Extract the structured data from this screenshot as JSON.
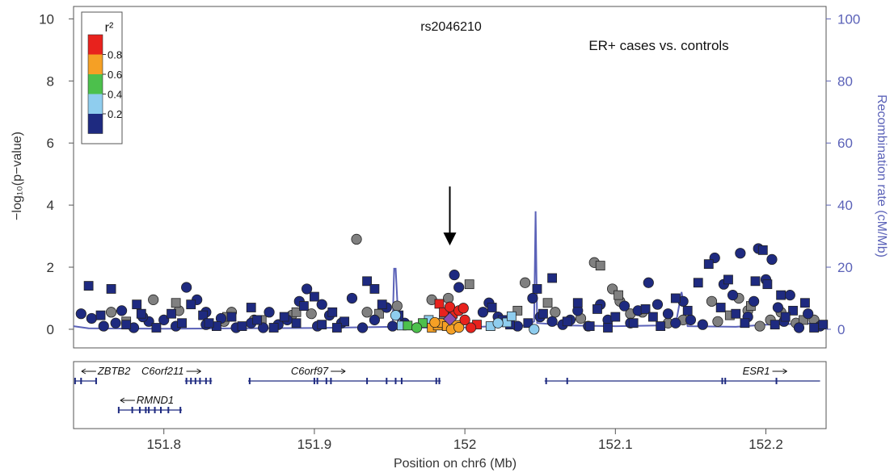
{
  "chart_data": {
    "type": "scatter",
    "title": "rs2046210",
    "subtitle": "ER+ cases vs. controls",
    "xlabel": "Position on chr6 (Mb)",
    "ylabel_left": "−log₁₀(p−value)",
    "ylabel_right": "Recombination rate (cM/Mb)",
    "xlim": [
      151.74,
      152.24
    ],
    "ylim_left": [
      -0.6,
      10.4
    ],
    "ylim_right": [
      -6,
      104
    ],
    "x_ticks": [
      151.8,
      151.9,
      152.0,
      152.1,
      152.2
    ],
    "x_tick_labels": [
      "151.8",
      "151.9",
      "152",
      "152.1",
      "152.2"
    ],
    "y_ticks_left": [
      0,
      2,
      4,
      6,
      8,
      10
    ],
    "y_tick_labels_left": [
      "0",
      "2",
      "4",
      "6",
      "8",
      "10"
    ],
    "y_ticks_right": [
      0,
      20,
      40,
      60,
      80,
      100
    ],
    "y_tick_labels_right": [
      "0",
      "20",
      "40",
      "60",
      "80",
      "100"
    ],
    "legend": {
      "title": "r²",
      "placement": "top-left",
      "bins": [
        {
          "color": "#e8221d"
        },
        {
          "color": "#f5a025"
        },
        {
          "color": "#4cc04c"
        },
        {
          "color": "#8fcdee"
        },
        {
          "color": "#1e2a80"
        }
      ],
      "labels": [
        "0.8",
        "0.6",
        "0.4",
        "0.2"
      ]
    },
    "lead_snp": {
      "x": 151.99,
      "y": 0.33,
      "color": "#8a4fb3"
    },
    "arrow_annotation": {
      "x": 151.99,
      "from_y": 4.6,
      "to_y": 2.7
    },
    "series": [
      {
        "color": "#e8221d",
        "shape": "square",
        "points": [
          [
            151.983,
            0.82
          ],
          [
            151.986,
            0.55
          ],
          [
            151.992,
            0.5
          ],
          [
            152.008,
            0.15
          ]
        ]
      },
      {
        "color": "#e8221d",
        "shape": "circle",
        "points": [
          [
            151.99,
            0.72
          ],
          [
            151.996,
            0.6
          ],
          [
            151.999,
            0.68
          ],
          [
            152.0,
            0.3
          ],
          [
            152.004,
            0.05
          ]
        ]
      },
      {
        "color": "#f5a025",
        "shape": "square",
        "points": [
          [
            151.978,
            0.05
          ],
          [
            151.982,
            0.12
          ],
          [
            151.985,
            0.2
          ],
          [
            151.988,
            0.1
          ],
          [
            151.994,
            0.14
          ]
        ]
      },
      {
        "color": "#f5a025",
        "shape": "circle",
        "points": [
          [
            151.98,
            0.22
          ],
          [
            151.991,
            0.0
          ],
          [
            151.996,
            0.06
          ]
        ]
      },
      {
        "color": "#4cc04c",
        "shape": "square",
        "points": [
          [
            151.962,
            0.12
          ],
          [
            151.972,
            0.2
          ]
        ]
      },
      {
        "color": "#4cc04c",
        "shape": "circle",
        "points": [
          [
            151.968,
            0.05
          ]
        ]
      },
      {
        "color": "#8fcdee",
        "shape": "square",
        "points": [
          [
            151.958,
            0.12
          ],
          [
            151.976,
            0.3
          ],
          [
            152.017,
            0.1
          ],
          [
            152.028,
            0.22
          ],
          [
            152.031,
            0.42
          ]
        ]
      },
      {
        "color": "#8fcdee",
        "shape": "circle",
        "points": [
          [
            151.954,
            0.45
          ],
          [
            152.022,
            0.2
          ],
          [
            152.046,
            0.0
          ]
        ]
      },
      {
        "color": "#808080",
        "shape": "circle",
        "points": [
          [
            151.765,
            0.55
          ],
          [
            151.793,
            0.95
          ],
          [
            151.845,
            0.55
          ],
          [
            151.86,
            0.3
          ],
          [
            151.885,
            0.45
          ],
          [
            151.898,
            0.5
          ],
          [
            151.928,
            2.9
          ],
          [
            151.935,
            0.55
          ],
          [
            151.978,
            0.95
          ],
          [
            151.989,
            1.0
          ],
          [
            152.04,
            1.5
          ],
          [
            152.086,
            2.15
          ],
          [
            152.098,
            1.3
          ],
          [
            152.103,
            0.9
          ],
          [
            152.118,
            0.55
          ],
          [
            152.135,
            0.2
          ],
          [
            152.164,
            0.9
          ],
          [
            152.168,
            0.25
          ],
          [
            152.182,
            1.0
          ],
          [
            152.188,
            0.6
          ],
          [
            152.196,
            0.1
          ],
          [
            152.203,
            0.3
          ],
          [
            152.22,
            0.2
          ],
          [
            152.232,
            0.3
          ],
          [
            151.81,
            0.6
          ],
          [
            151.84,
            0.25
          ],
          [
            151.955,
            0.75
          ],
          [
            152.06,
            0.55
          ],
          [
            152.077,
            0.35
          ],
          [
            152.11,
            0.5
          ],
          [
            152.145,
            0.3
          ],
          [
            152.21,
            0.55
          ]
        ]
      },
      {
        "color": "#808080",
        "shape": "square",
        "points": [
          [
            151.808,
            0.85
          ],
          [
            151.842,
            0.4
          ],
          [
            151.865,
            0.3
          ],
          [
            151.888,
            0.55
          ],
          [
            151.943,
            0.5
          ],
          [
            151.986,
            0.3
          ],
          [
            152.003,
            1.45
          ],
          [
            152.055,
            0.85
          ],
          [
            152.09,
            2.05
          ],
          [
            152.102,
            1.1
          ],
          [
            152.176,
            0.45
          ],
          [
            152.19,
            0.75
          ],
          [
            152.225,
            0.3
          ],
          [
            151.775,
            0.25
          ],
          [
            152.035,
            0.6
          ]
        ]
      },
      {
        "color": "#1e2a80",
        "shape": "circle",
        "points": [
          [
            151.752,
            0.35
          ],
          [
            151.76,
            0.1
          ],
          [
            151.772,
            0.6
          ],
          [
            151.78,
            0.05
          ],
          [
            151.79,
            0.25
          ],
          [
            151.8,
            0.3
          ],
          [
            151.808,
            0.1
          ],
          [
            151.815,
            1.35
          ],
          [
            151.822,
            0.95
          ],
          [
            151.828,
            0.15
          ],
          [
            151.838,
            0.35
          ],
          [
            151.848,
            0.05
          ],
          [
            151.858,
            0.2
          ],
          [
            151.87,
            0.55
          ],
          [
            151.876,
            0.15
          ],
          [
            151.882,
            0.3
          ],
          [
            151.89,
            0.9
          ],
          [
            151.895,
            1.3
          ],
          [
            151.902,
            0.1
          ],
          [
            151.91,
            0.45
          ],
          [
            151.918,
            0.2
          ],
          [
            151.925,
            1.0
          ],
          [
            151.932,
            0.05
          ],
          [
            151.94,
            0.3
          ],
          [
            151.948,
            0.7
          ],
          [
            151.96,
            0.2
          ],
          [
            151.993,
            1.75
          ],
          [
            151.996,
            1.35
          ],
          [
            152.012,
            0.55
          ],
          [
            152.016,
            0.85
          ],
          [
            152.022,
            0.4
          ],
          [
            152.035,
            0.1
          ],
          [
            152.045,
            1.0
          ],
          [
            152.05,
            0.4
          ],
          [
            152.058,
            0.25
          ],
          [
            152.065,
            0.15
          ],
          [
            152.075,
            0.6
          ],
          [
            152.082,
            0.1
          ],
          [
            152.09,
            0.8
          ],
          [
            152.095,
            0.3
          ],
          [
            152.106,
            0.75
          ],
          [
            152.11,
            0.2
          ],
          [
            152.122,
            1.5
          ],
          [
            152.128,
            0.8
          ],
          [
            152.135,
            0.5
          ],
          [
            152.14,
            0.2
          ],
          [
            152.15,
            0.3
          ],
          [
            152.158,
            0.15
          ],
          [
            152.166,
            2.3
          ],
          [
            152.172,
            1.45
          ],
          [
            152.178,
            1.1
          ],
          [
            152.183,
            2.45
          ],
          [
            152.188,
            0.4
          ],
          [
            152.195,
            2.6
          ],
          [
            152.2,
            1.6
          ],
          [
            152.204,
            2.25
          ],
          [
            152.208,
            0.7
          ],
          [
            152.212,
            0.25
          ],
          [
            152.216,
            1.1
          ],
          [
            152.222,
            0.05
          ],
          [
            151.745,
            0.5
          ],
          [
            151.768,
            0.2
          ],
          [
            151.786,
            0.4
          ],
          [
            151.828,
            0.55
          ],
          [
            151.866,
            0.05
          ],
          [
            151.905,
            0.8
          ],
          [
            151.952,
            0.1
          ],
          [
            152.07,
            0.3
          ],
          [
            152.115,
            0.6
          ],
          [
            152.145,
            0.9
          ],
          [
            152.192,
            0.9
          ],
          [
            152.228,
            0.5
          ],
          [
            152.236,
            0.1
          ]
        ]
      },
      {
        "color": "#1e2a80",
        "shape": "square",
        "points": [
          [
            151.75,
            1.4
          ],
          [
            151.758,
            0.45
          ],
          [
            151.765,
            1.3
          ],
          [
            151.775,
            0.15
          ],
          [
            151.785,
            0.5
          ],
          [
            151.795,
            0.05
          ],
          [
            151.805,
            0.5
          ],
          [
            151.812,
            0.2
          ],
          [
            151.818,
            0.8
          ],
          [
            151.826,
            0.45
          ],
          [
            151.835,
            0.1
          ],
          [
            151.845,
            0.4
          ],
          [
            151.852,
            0.1
          ],
          [
            151.862,
            0.3
          ],
          [
            151.873,
            0.05
          ],
          [
            151.88,
            0.4
          ],
          [
            151.888,
            0.2
          ],
          [
            151.893,
            0.75
          ],
          [
            151.9,
            1.05
          ],
          [
            151.905,
            0.15
          ],
          [
            151.912,
            0.55
          ],
          [
            151.92,
            0.25
          ],
          [
            151.935,
            1.55
          ],
          [
            151.94,
            1.3
          ],
          [
            151.945,
            0.8
          ],
          [
            151.956,
            0.45
          ],
          [
            152.018,
            0.7
          ],
          [
            152.025,
            0.3
          ],
          [
            152.03,
            0.15
          ],
          [
            152.042,
            0.2
          ],
          [
            152.048,
            1.3
          ],
          [
            152.052,
            0.5
          ],
          [
            152.058,
            1.65
          ],
          [
            152.068,
            0.25
          ],
          [
            152.075,
            0.85
          ],
          [
            152.083,
            0.1
          ],
          [
            152.088,
            0.65
          ],
          [
            152.1,
            0.4
          ],
          [
            152.112,
            0.2
          ],
          [
            152.12,
            0.65
          ],
          [
            152.13,
            0.1
          ],
          [
            152.14,
            1.0
          ],
          [
            152.148,
            0.6
          ],
          [
            152.155,
            1.5
          ],
          [
            152.162,
            2.1
          ],
          [
            152.175,
            1.6
          ],
          [
            152.18,
            0.5
          ],
          [
            152.186,
            0.2
          ],
          [
            152.193,
            1.55
          ],
          [
            152.198,
            2.55
          ],
          [
            152.201,
            1.45
          ],
          [
            152.206,
            0.15
          ],
          [
            152.21,
            1.1
          ],
          [
            152.218,
            0.6
          ],
          [
            152.226,
            0.85
          ],
          [
            152.232,
            0.05
          ],
          [
            152.238,
            0.15
          ],
          [
            151.782,
            0.8
          ],
          [
            151.83,
            0.2
          ],
          [
            151.858,
            0.7
          ],
          [
            151.915,
            0.05
          ],
          [
            152.095,
            0.05
          ],
          [
            152.125,
            0.4
          ],
          [
            152.17,
            0.7
          ],
          [
            152.213,
            0.4
          ]
        ]
      }
    ],
    "recombination_rate": {
      "color": "#5b62b8",
      "points": [
        [
          151.74,
          1
        ],
        [
          151.75,
          0.3
        ],
        [
          151.8,
          0.2
        ],
        [
          151.85,
          0.3
        ],
        [
          151.9,
          0.4
        ],
        [
          151.952,
          0.8
        ],
        [
          151.953,
          19.5
        ],
        [
          151.954,
          19.5
        ],
        [
          151.956,
          0.6
        ],
        [
          151.98,
          0.5
        ],
        [
          152.0,
          0.6
        ],
        [
          152.02,
          1.0
        ],
        [
          152.04,
          1.2
        ],
        [
          152.046,
          2.5
        ],
        [
          152.047,
          38.0
        ],
        [
          152.048,
          2.0
        ],
        [
          152.07,
          1.2
        ],
        [
          152.1,
          1.0
        ],
        [
          152.14,
          1.3
        ],
        [
          152.144,
          12.0
        ],
        [
          152.148,
          1.0
        ],
        [
          152.18,
          0.8
        ],
        [
          152.2,
          1.5
        ],
        [
          152.24,
          2.0
        ]
      ]
    },
    "genes": [
      {
        "name": "ZBTB2",
        "direction": "left",
        "row": 0,
        "start": 151.741,
        "end": 151.755,
        "exons": [
          151.741,
          151.745,
          151.755
        ]
      },
      {
        "name": "C6orf211",
        "direction": "right",
        "row": 0,
        "start": 151.814,
        "end": 151.832,
        "exons": [
          151.815,
          151.818,
          151.821,
          151.824,
          151.828,
          151.831
        ]
      },
      {
        "name": "C6orf97",
        "direction": "right",
        "row": 0,
        "start": 151.856,
        "end": 151.984,
        "exons": [
          151.857,
          151.9,
          151.902,
          151.908,
          151.911,
          151.935,
          151.948,
          151.954,
          151.958,
          151.981,
          151.983
        ]
      },
      {
        "name": "ESR1",
        "direction": "right",
        "row": 0,
        "start": 152.053,
        "end": 152.236,
        "exons": [
          152.054,
          152.068,
          152.171,
          152.173,
          152.207
        ]
      },
      {
        "name": "RMND1",
        "direction": "left",
        "row": 1,
        "start": 151.77,
        "end": 151.812,
        "exons": [
          151.77,
          151.779,
          151.784,
          151.788,
          151.79,
          151.794,
          151.798,
          151.803,
          151.811
        ]
      }
    ]
  }
}
